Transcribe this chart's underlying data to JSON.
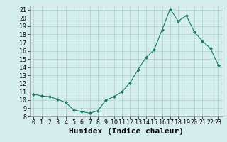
{
  "xlabel": "Humidex (Indice chaleur)",
  "x": [
    0,
    1,
    2,
    3,
    4,
    5,
    6,
    7,
    8,
    9,
    10,
    11,
    12,
    13,
    14,
    15,
    16,
    17,
    18,
    19,
    20,
    21,
    22,
    23
  ],
  "y": [
    10.7,
    10.5,
    10.4,
    10.1,
    9.7,
    8.8,
    8.6,
    8.4,
    8.7,
    10.0,
    10.4,
    11.0,
    12.1,
    13.7,
    15.2,
    16.1,
    18.6,
    21.1,
    19.6,
    20.3,
    18.3,
    17.2,
    16.3,
    14.2
  ],
  "ylim": [
    8,
    21.5
  ],
  "xlim": [
    -0.5,
    23.5
  ],
  "yticks": [
    8,
    9,
    10,
    11,
    12,
    13,
    14,
    15,
    16,
    17,
    18,
    19,
    20,
    21
  ],
  "xticks": [
    0,
    1,
    2,
    3,
    4,
    5,
    6,
    7,
    8,
    9,
    10,
    11,
    12,
    13,
    14,
    15,
    16,
    17,
    18,
    19,
    20,
    21,
    22,
    23
  ],
  "line_color": "#1a7a5e",
  "marker": "D",
  "marker_size": 2,
  "bg_color": "#d4eeee",
  "grid_color": "#b0cfcf",
  "tick_fontsize": 6,
  "xlabel_fontsize": 8
}
